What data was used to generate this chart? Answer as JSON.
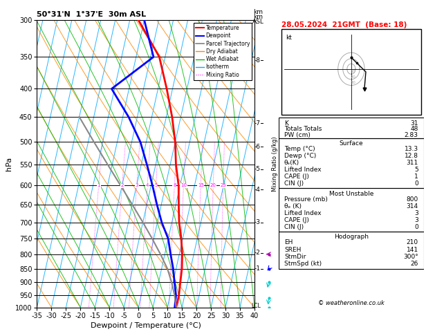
{
  "title_left": "50°31'N  1°37'E  30m ASL",
  "title_right": "28.05.2024  21GMT  (Base: 18)",
  "xlabel": "Dewpoint / Temperature (°C)",
  "ylabel_left": "hPa",
  "pressure_levels": [
    300,
    350,
    400,
    450,
    500,
    550,
    600,
    650,
    700,
    750,
    800,
    850,
    900,
    950,
    1000
  ],
  "temp_x": [
    13.0,
    13.0,
    12.5,
    12.0,
    11.0,
    9.5,
    7.5,
    6.0,
    4.5,
    2.0,
    0.0,
    -3.0,
    -7.0,
    -12.0,
    -22.0
  ],
  "temp_p": [
    1000,
    950,
    900,
    850,
    800,
    750,
    700,
    650,
    600,
    550,
    500,
    450,
    400,
    350,
    300
  ],
  "dewp_x": [
    12.5,
    12.0,
    10.5,
    9.0,
    7.0,
    5.0,
    1.5,
    -1.5,
    -4.5,
    -8.0,
    -12.0,
    -18.0,
    -26.0,
    -14.0,
    -20.0
  ],
  "dewp_p": [
    1000,
    950,
    900,
    850,
    800,
    750,
    700,
    650,
    600,
    550,
    500,
    450,
    400,
    350,
    300
  ],
  "parcel_x": [
    13.0,
    11.5,
    9.5,
    7.0,
    3.5,
    -0.5,
    -5.0,
    -10.0,
    -15.5,
    -21.5,
    -28.0,
    -35.0
  ],
  "parcel_p": [
    1000,
    950,
    900,
    850,
    800,
    750,
    700,
    650,
    600,
    550,
    500,
    450
  ],
  "xmin": -35,
  "xmax": 40,
  "pmin": 300,
  "pmax": 1000,
  "skew_factor": 22,
  "km_ticks": [
    1,
    2,
    3,
    4,
    5,
    6,
    7,
    8
  ],
  "km_pressures": [
    850,
    795,
    700,
    610,
    560,
    510,
    462,
    355
  ],
  "lcl_pressure": 994,
  "background_color": "#ffffff",
  "temp_color": "#ff0000",
  "dewp_color": "#0000ff",
  "parcel_color": "#888888",
  "isotherm_color": "#00aaff",
  "dry_adiabat_color": "#ff8800",
  "wet_adiabat_color": "#00bb00",
  "mixing_ratio_color": "#ff00ff",
  "stats": {
    "K": 31,
    "TotTot": 48,
    "PW": "2.83",
    "surf_temp": "13.3",
    "surf_dewp": "12.8",
    "surf_thetae": 311,
    "surf_li": 5,
    "surf_cape": 1,
    "surf_cin": 0,
    "mu_pressure": 800,
    "mu_thetae": 314,
    "mu_li": 3,
    "mu_cape": 3,
    "mu_cin": 0,
    "EH": 210,
    "SREH": 141,
    "StmDir": "300°",
    "StmSpd": 26
  }
}
